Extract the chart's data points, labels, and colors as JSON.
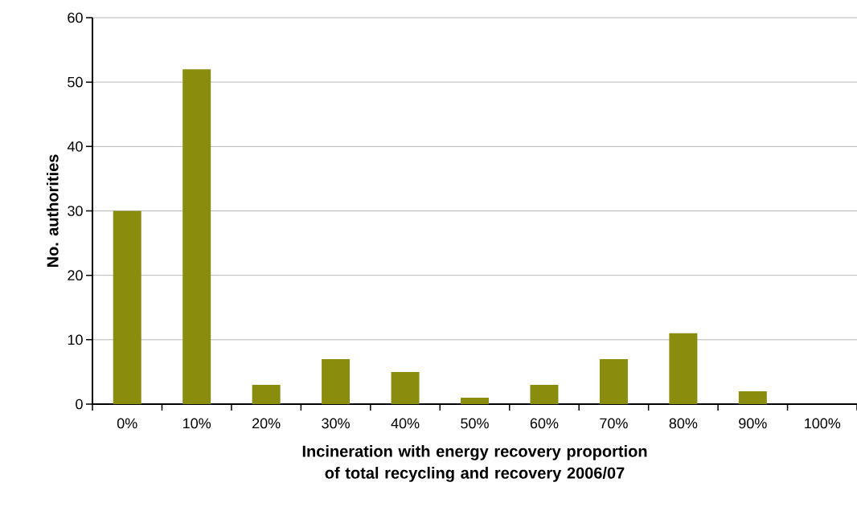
{
  "chart_data": {
    "type": "bar",
    "xlabel": "Incineration with energy recovery proportion of total recycling and recovery 2006/07",
    "ylabel": "No. authorities",
    "categories": [
      "0%",
      "10%",
      "20%",
      "30%",
      "40%",
      "50%",
      "60%",
      "70%",
      "80%",
      "90%",
      "100%"
    ],
    "values": [
      30,
      52,
      3,
      7,
      5,
      1,
      3,
      7,
      11,
      2,
      0
    ],
    "color": "#8a8c0e",
    "ylim": [
      0,
      60
    ],
    "yticks": [
      0,
      10,
      20,
      30,
      40,
      50,
      60
    ],
    "grid": "y"
  }
}
